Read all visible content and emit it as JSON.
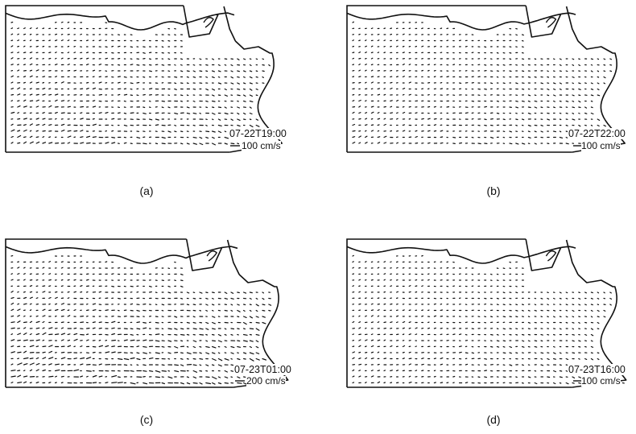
{
  "panels": [
    {
      "id": "a",
      "caption": "(a)",
      "time": "07-22T19:00",
      "scale": "100 cm/s"
    },
    {
      "id": "b",
      "caption": "(b)",
      "time": "07-22T22:00",
      "scale": "100 cm/s"
    },
    {
      "id": "c",
      "caption": "(c)",
      "time": "07-23T01:00",
      "scale": "200 cm/s"
    },
    {
      "id": "d",
      "caption": "(d)",
      "time": "07-23T16:00",
      "scale": "100 cm/s"
    }
  ],
  "colors": {
    "ink": "#111111",
    "background": "#ffffff"
  }
}
